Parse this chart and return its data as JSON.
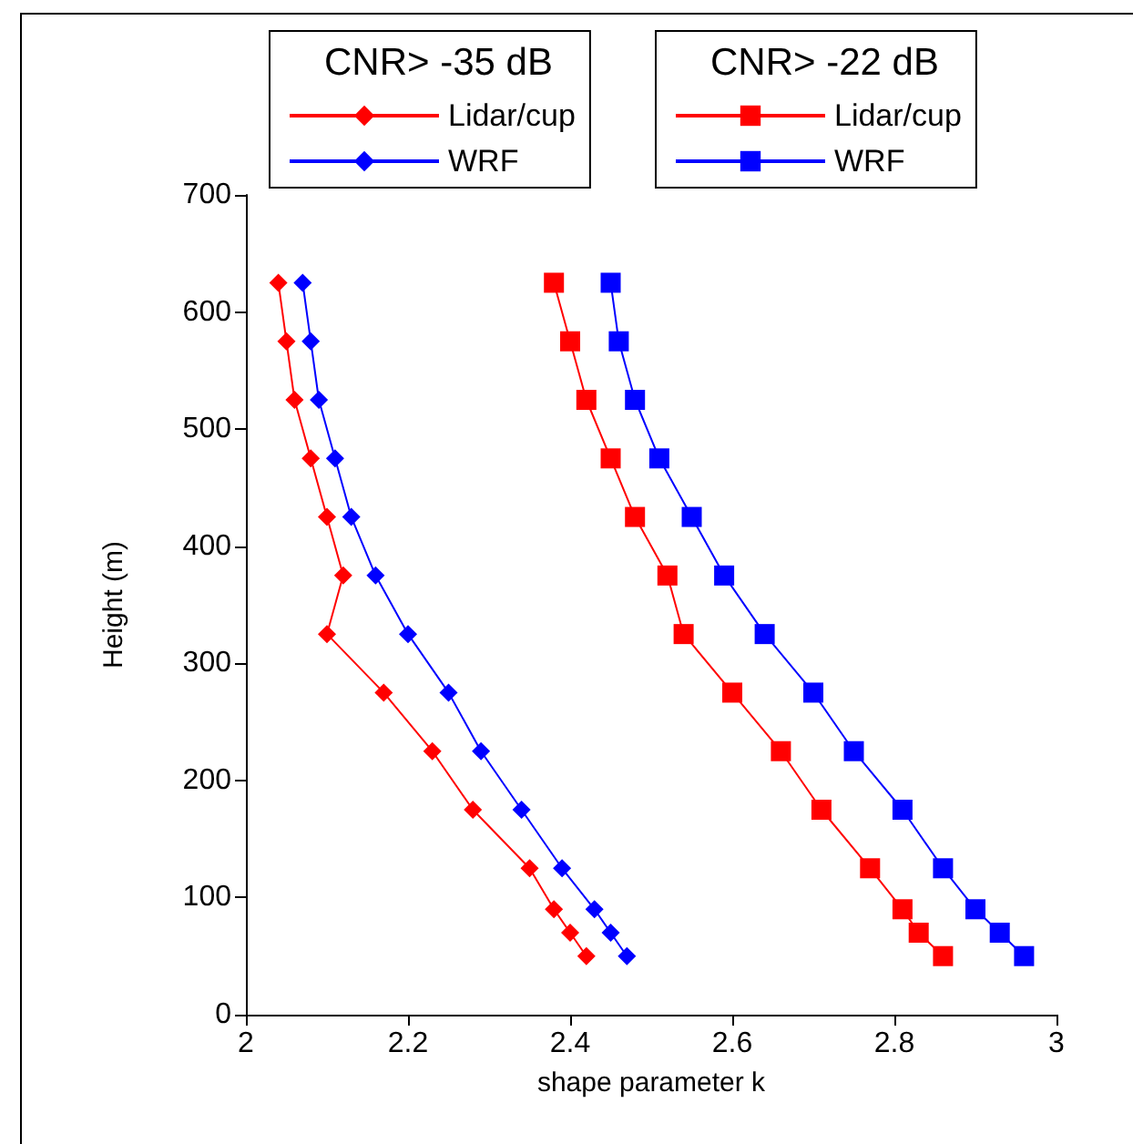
{
  "chart_data": {
    "type": "line",
    "xlabel": "shape parameter k",
    "ylabel": "Height (m)",
    "annotations": [
      "CNR> -35 dB",
      "CNR> -22 dB"
    ],
    "xlim": [
      2,
      3
    ],
    "xticks": [
      2,
      2.2,
      2.4,
      2.6,
      2.8,
      3
    ],
    "ylim": [
      0,
      700
    ],
    "yticks": [
      0,
      100,
      200,
      300,
      400,
      500,
      600,
      700
    ],
    "grid": false,
    "legend": "top",
    "series": [
      {
        "name": "Lidar/cup",
        "color": "#ff0000",
        "marker": "diamond",
        "x": [
          2.04,
          2.05,
          2.06,
          2.08,
          2.1,
          2.12,
          2.1,
          2.17,
          2.23,
          2.28,
          2.35,
          2.38,
          2.4,
          2.42
        ],
        "values": [
          625,
          575,
          525,
          475,
          425,
          375,
          325,
          275,
          225,
          175,
          125,
          90,
          70,
          50
        ]
      },
      {
        "name": "WRF",
        "color": "#0000ff",
        "marker": "diamond",
        "x": [
          2.07,
          2.08,
          2.09,
          2.11,
          2.13,
          2.16,
          2.2,
          2.25,
          2.29,
          2.34,
          2.39,
          2.43,
          2.45,
          2.47
        ],
        "values": [
          625,
          575,
          525,
          475,
          425,
          375,
          325,
          275,
          225,
          175,
          125,
          90,
          70,
          50
        ]
      },
      {
        "name": "Lidar/cup",
        "color": "#ff0000",
        "marker": "square",
        "x": [
          2.38,
          2.4,
          2.42,
          2.45,
          2.48,
          2.52,
          2.54,
          2.6,
          2.66,
          2.71,
          2.77,
          2.81,
          2.83,
          2.86
        ],
        "values": [
          625,
          575,
          525,
          475,
          425,
          375,
          325,
          275,
          225,
          175,
          125,
          90,
          70,
          50
        ]
      },
      {
        "name": "WRF",
        "color": "#0000ff",
        "marker": "square",
        "x": [
          2.45,
          2.46,
          2.48,
          2.51,
          2.55,
          2.59,
          2.64,
          2.7,
          2.75,
          2.81,
          2.86,
          2.9,
          2.93,
          2.96
        ],
        "values": [
          625,
          575,
          525,
          475,
          425,
          375,
          325,
          275,
          225,
          175,
          125,
          90,
          70,
          50
        ]
      }
    ]
  }
}
